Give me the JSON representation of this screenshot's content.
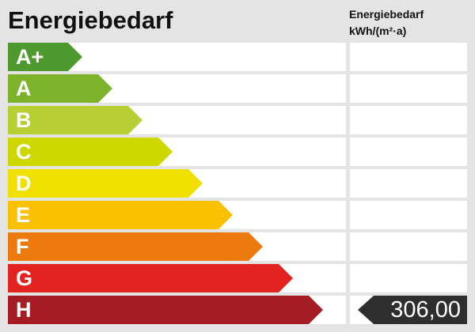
{
  "title": "Energiebedarf",
  "column_header": {
    "line1": "Energiebedarf",
    "line2": "kWh/(m²·a)"
  },
  "classes": [
    {
      "label": "A+",
      "color": "#4f9a2e"
    },
    {
      "label": "A",
      "color": "#7db32a"
    },
    {
      "label": "B",
      "color": "#b8cf33"
    },
    {
      "label": "C",
      "color": "#cfd700"
    },
    {
      "label": "D",
      "color": "#f1e000"
    },
    {
      "label": "E",
      "color": "#f9c100"
    },
    {
      "label": "F",
      "color": "#ec7a0e"
    },
    {
      "label": "G",
      "color": "#e2231f"
    },
    {
      "label": "H",
      "color": "#a51c24"
    }
  ],
  "current": {
    "class": "H",
    "value": "306,00",
    "marker_color": "#2e2e2e"
  }
}
